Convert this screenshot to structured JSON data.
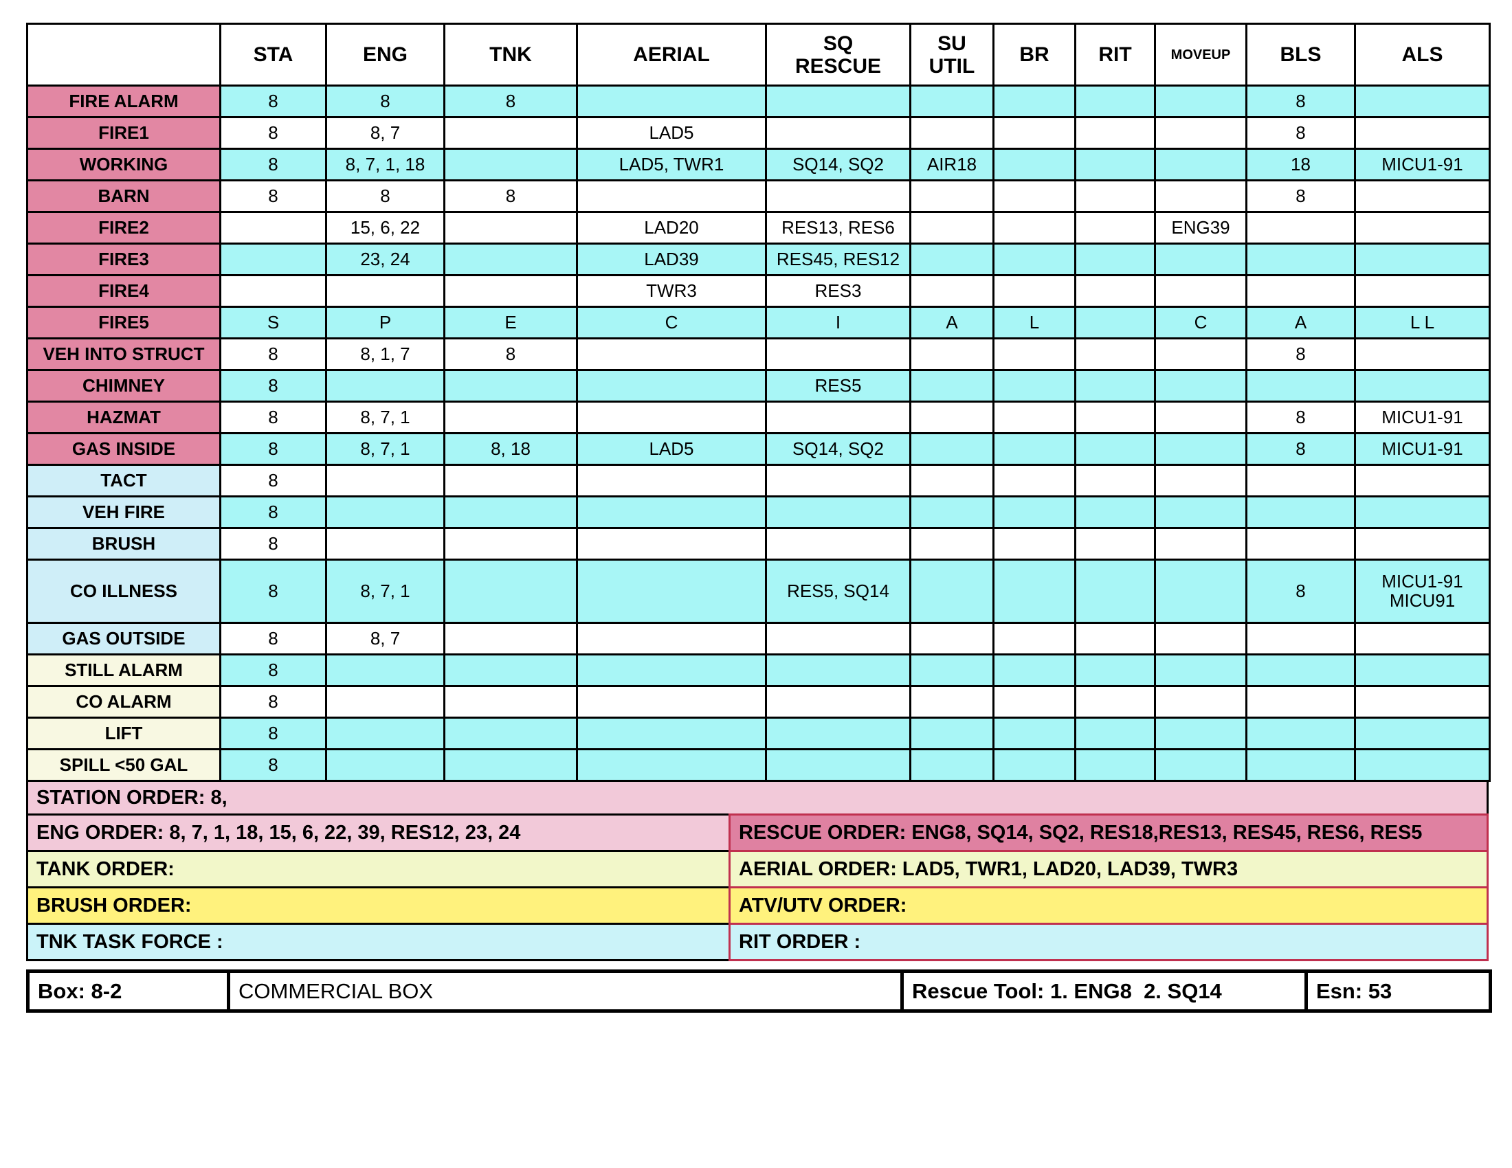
{
  "colors": {
    "label_pink": "#E287A3",
    "label_blue": "#CFEEF8",
    "label_yellow": "#F8F8E2",
    "cell_cyan": "#A8F6F6",
    "order_pink_light": "#F2C9D9",
    "order_pink_dark": "#DF81A1",
    "order_green": "#F2F7C9",
    "order_yellow": "#FFF27D",
    "order_cyan": "#CBF3F9",
    "order_border_red": "#C0304F",
    "grid": "#000000"
  },
  "table": {
    "columns": [
      "",
      "STA",
      "ENG",
      "TNK",
      "AERIAL",
      "SQ\nRESCUE",
      "SU\nUTIL",
      "BR",
      "RIT",
      "MOVEUP",
      "BLS",
      "ALS"
    ],
    "rows": [
      {
        "label": "FIRE ALARM",
        "label_bg": "pink",
        "data_bg": "cyan",
        "tall": false,
        "cells": [
          "8",
          "8",
          "8",
          "",
          "",
          "",
          "",
          "",
          "",
          "8",
          ""
        ]
      },
      {
        "label": "FIRE1",
        "label_bg": "pink",
        "data_bg": "white",
        "tall": false,
        "cells": [
          "8",
          "8, 7",
          "",
          "LAD5",
          "",
          "",
          "",
          "",
          "",
          "8",
          ""
        ]
      },
      {
        "label": "WORKING",
        "label_bg": "pink",
        "data_bg": "cyan",
        "tall": false,
        "cells": [
          "8",
          "8, 7, 1, 18",
          "",
          "LAD5, TWR1",
          "SQ14, SQ2",
          "AIR18",
          "",
          "",
          "",
          "18",
          "MICU1-91"
        ]
      },
      {
        "label": "BARN",
        "label_bg": "pink",
        "data_bg": "white",
        "tall": false,
        "cells": [
          "8",
          "8",
          "8",
          "",
          "",
          "",
          "",
          "",
          "",
          "8",
          ""
        ]
      },
      {
        "label": "FIRE2",
        "label_bg": "pink",
        "data_bg": "white",
        "tall": false,
        "cells": [
          "",
          "15, 6, 22",
          "",
          "LAD20",
          "RES13, RES6",
          "",
          "",
          "",
          "ENG39",
          "",
          ""
        ]
      },
      {
        "label": "FIRE3",
        "label_bg": "pink",
        "data_bg": "cyan",
        "tall": false,
        "cells": [
          "",
          "23, 24",
          "",
          "LAD39",
          "RES45, RES12",
          "",
          "",
          "",
          "",
          "",
          ""
        ]
      },
      {
        "label": "FIRE4",
        "label_bg": "pink",
        "data_bg": "white",
        "tall": false,
        "cells": [
          "",
          "",
          "",
          "TWR3",
          "RES3",
          "",
          "",
          "",
          "",
          "",
          ""
        ]
      },
      {
        "label": "FIRE5",
        "label_bg": "pink",
        "data_bg": "cyan",
        "tall": false,
        "cells": [
          "S",
          "P",
          "E",
          "C",
          "I",
          "A",
          "L",
          "",
          "C",
          "A",
          "L L"
        ]
      },
      {
        "label": "VEH INTO STRUCT",
        "label_bg": "pink",
        "data_bg": "white",
        "tall": false,
        "cells": [
          "8",
          "8, 1, 7",
          "8",
          "",
          "",
          "",
          "",
          "",
          "",
          "8",
          ""
        ]
      },
      {
        "label": "CHIMNEY",
        "label_bg": "pink",
        "data_bg": "cyan",
        "tall": false,
        "cells": [
          "8",
          "",
          "",
          "",
          "RES5",
          "",
          "",
          "",
          "",
          "",
          ""
        ]
      },
      {
        "label": "HAZMAT",
        "label_bg": "pink",
        "data_bg": "white",
        "tall": false,
        "cells": [
          "8",
          "8, 7, 1",
          "",
          "",
          "",
          "",
          "",
          "",
          "",
          "8",
          "MICU1-91"
        ]
      },
      {
        "label": "GAS INSIDE",
        "label_bg": "pink",
        "data_bg": "cyan",
        "tall": false,
        "cells": [
          "8",
          "8, 7, 1",
          "8, 18",
          "LAD5",
          "SQ14, SQ2",
          "",
          "",
          "",
          "",
          "8",
          "MICU1-91"
        ]
      },
      {
        "label": "TACT",
        "label_bg": "blue",
        "data_bg": "white",
        "tall": false,
        "cells": [
          "8",
          "",
          "",
          "",
          "",
          "",
          "",
          "",
          "",
          "",
          ""
        ]
      },
      {
        "label": "VEH FIRE",
        "label_bg": "blue",
        "data_bg": "cyan",
        "tall": false,
        "cells": [
          "8",
          "",
          "",
          "",
          "",
          "",
          "",
          "",
          "",
          "",
          ""
        ]
      },
      {
        "label": "BRUSH",
        "label_bg": "blue",
        "data_bg": "white",
        "tall": false,
        "cells": [
          "8",
          "",
          "",
          "",
          "",
          "",
          "",
          "",
          "",
          "",
          ""
        ]
      },
      {
        "label": "CO ILLNESS",
        "label_bg": "blue",
        "data_bg": "cyan",
        "tall": true,
        "cells": [
          "8",
          "8, 7, 1",
          "",
          "",
          "RES5, SQ14",
          "",
          "",
          "",
          "",
          "8",
          "MICU1-91\nMICU91"
        ]
      },
      {
        "label": "GAS OUTSIDE",
        "label_bg": "blue",
        "data_bg": "white",
        "tall": false,
        "cells": [
          "8",
          "8, 7",
          "",
          "",
          "",
          "",
          "",
          "",
          "",
          "",
          ""
        ]
      },
      {
        "label": "STILL ALARM",
        "label_bg": "yellow",
        "data_bg": "cyan",
        "tall": false,
        "cells": [
          "8",
          "",
          "",
          "",
          "",
          "",
          "",
          "",
          "",
          "",
          ""
        ]
      },
      {
        "label": "CO ALARM",
        "label_bg": "yellow",
        "data_bg": "white",
        "tall": false,
        "cells": [
          "8",
          "",
          "",
          "",
          "",
          "",
          "",
          "",
          "",
          "",
          ""
        ]
      },
      {
        "label": "LIFT",
        "label_bg": "yellow",
        "data_bg": "cyan",
        "tall": false,
        "cells": [
          "8",
          "",
          "",
          "",
          "",
          "",
          "",
          "",
          "",
          "",
          ""
        ]
      },
      {
        "label": "SPILL <50 GAL",
        "label_bg": "yellow",
        "data_bg": "cyan",
        "tall": false,
        "cells": [
          "8",
          "",
          "",
          "",
          "",
          "",
          "",
          "",
          "",
          "",
          ""
        ]
      }
    ]
  },
  "orders": {
    "station": "STATION ORDER: 8,",
    "eng": "ENG ORDER: 8, 7, 1, 18, 15, 6, 22, 39, RES12, 23, 24",
    "rescue": "RESCUE ORDER: ENG8, SQ14, SQ2, RES18,RES13, RES45, RES6, RES5",
    "tank": "TANK ORDER:",
    "aerial": "AERIAL ORDER: LAD5, TWR1, LAD20, LAD39, TWR3",
    "brush": "BRUSH ORDER:",
    "atv": "ATV/UTV ORDER:",
    "tnk_task_force": "TNK TASK FORCE :",
    "rit": "RIT ORDER :"
  },
  "footer_bar": {
    "box": "Box: 8-2",
    "box_type": "COMMERCIAL BOX",
    "rescue_tool": "Rescue Tool: 1. ENG8  2. SQ14",
    "esn": "Esn: 53"
  }
}
